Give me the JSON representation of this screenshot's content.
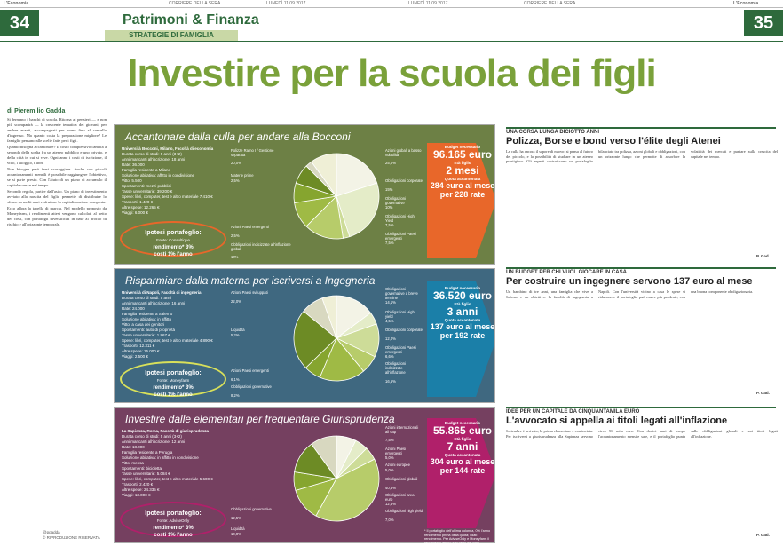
{
  "masthead": {
    "left_brand": "L'Economia",
    "left_paper": "CORRIERE DELLA SERA",
    "left_date": "LUNEDÌ 11.09.2017",
    "right_date": "LUNEDÌ 11.09.2017",
    "right_paper": "CORRIERE DELLA SERA",
    "right_brand": "L'Economia"
  },
  "pages": {
    "left": "34",
    "right": "35"
  },
  "section": {
    "title": "Patrimoni & Finanza",
    "subtitle": "STRATEGIE DI FAMIGLIA"
  },
  "headline": "Investire per la scuola dei figli",
  "byline": "di Pieremilio Gadda",
  "article_left": [
    "Si fermano i banchi di scuola. Ritorna ai pensieri — e non più scomparirà — la crescente tematica dei giovani, per andare avanti, accompagnati per mano fino al cancello d'ingresso. Ma quanto costa la preparazione migliore? Le famiglie pensano alle scelte fatte per i figli.",
    "Quanto bisogna accantonare? Il costo complessivo cambia a seconda della scelta fra un ateneo pubblico e uno privato, e della città in cui si vive. Ogni anno i costi di iscrizione, il vitto, l'alloggio, i libri.",
    "Non bisogna però farsi scoraggiare. Anche con piccoli accantonamenti mensili è possibile raggiungere l'obiettivo, se si parte presto. Con l'aiuto di un piano di accumulo il capitale cresce nel tempo.",
    "Secondo regola, partire dall'asilo. Un piano di investimento avviato alla nascita del figlio permette di distribuire lo sforzo su molti anni e sfruttare la capitalizzazione composta.",
    "Ecco allora la tabella di marcia. Nel modello proposto da Moneyfarm, i rendimenti attesi vengono calcolati al netto dei costi, con portafogli diversificati in base al profilo di rischio e all'orizzonte temporale."
  ],
  "social": {
    "handle": "@pgadda",
    "credit": "© RIPRODUZIONE RISERVATA"
  },
  "panels": [
    {
      "title": "Accantonare dalla culla per andare alla Bocconi",
      "info": [
        "Università Bocconi, Milano, Facoltà di economia",
        "Durata corso di studi: 5 anni (3+2)",
        "Anni mancanti all'iscrizione: 18 anni",
        "Rate: 36.000",
        "Famiglia residente a Milano",
        "Soluzione abitativa: affitto in condivisione",
        "Vitto: 5.500",
        "Spostamenti: mezzi pubblici",
        "Tasse universitarie: 39.200 €",
        "Spese: libri, computer, test e altro materiale 7.410 €",
        "Trasporti: 1.420 €",
        "Altre spese: 12.265 €",
        "Viaggi: 6.000 €"
      ],
      "portfolio": {
        "title": "Ipotesi portafoglio:",
        "source": "Fonte: Consultique",
        "yield": "rendimento* 3%",
        "cost": "costi 1% l'anno"
      },
      "slices": [
        {
          "label": "Polizze Ramo I / Gestione separata",
          "value": 20.0
        },
        {
          "label": "Azioni globali a basso volatilità",
          "value": 25.0
        },
        {
          "label": "Materie prime",
          "value": 2.5
        },
        {
          "label": "Obbligazioni corporate",
          "value": 15.0
        },
        {
          "label": "Obbligazioni governative",
          "value": 10.0
        },
        {
          "label": "Obbligazioni High Yield",
          "value": 7.5
        },
        {
          "label": "Obbligazioni Paesi emergenti",
          "value": 7.5
        },
        {
          "label": "Azioni Paesi emergenti",
          "value": 2.5
        },
        {
          "label": "Obbligazioni indicizzate all'inflazione globali",
          "value": 10.0
        }
      ],
      "slice_text": [
        "20,0%",
        "25,0%",
        "2,5%",
        "15%",
        "10%",
        "7,5%",
        "7,5%",
        "2,5%",
        "10%"
      ],
      "budget_label": "Budget necessario",
      "budget": "96.165 euro",
      "age_label": "Età figlio",
      "age": "2 mesi",
      "quota_label": "Quota accantonata",
      "quota": "284 euro al mese per 228 rate"
    },
    {
      "title": "Risparmiare dalla materna per iscriversi a Ingegneria",
      "info": [
        "Università di Napoli, Facoltà di ingegneria",
        "Durata corso di studi: 5 anni",
        "Anni mancanti all'iscrizione: 16 anni",
        "Rate: 24.000",
        "Famiglia residente a Salerno",
        "Soluzione abitativa: in affitto",
        "Vitto: a casa dei genitori",
        "Spostamenti: auto di proprietà",
        "Tasse universitarie: 1.867 €",
        "Spese: libri, computer, test e altro materiale 4.890 €",
        "Trasporti: 12.311 €",
        "Altre spese: 15.000 €",
        "Viaggi: 2.500 €"
      ],
      "portfolio": {
        "title": "Ipotesi portafoglio:",
        "source": "Fonte: Moneyfarm",
        "yield": "rendimento* 3%",
        "cost": "costi 1% l'anno"
      },
      "slices": [
        {
          "label": "Obbligazioni governative a breve termine",
          "value": 14.1
        },
        {
          "label": "Obbligazioni High yield",
          "value": 4.5
        },
        {
          "label": "Obbligazioni corporate",
          "value": 12.0
        },
        {
          "label": "Obbligazioni Paesi emergenti",
          "value": 6.6
        },
        {
          "label": "Obbligazioni indicizzate all'inflazione",
          "value": 16.5
        },
        {
          "label": "Azioni Paesi emergenti",
          "value": 6.1
        },
        {
          "label": "Azioni Paesi sviluppati",
          "value": 22.0
        },
        {
          "label": "Obbligazioni governative",
          "value": 8.2
        },
        {
          "label": "Liquidità",
          "value": 5.2
        }
      ],
      "slice_text": [
        "14,1%",
        "4,5%",
        "12,0%",
        "6,6%",
        "16,5%",
        "6,1%",
        "22,0%",
        "8,2%",
        "5,2%"
      ],
      "budget_label": "Budget necessario",
      "budget": "36.520 euro",
      "age_label": "Età figlio",
      "age": "3 anni",
      "quota_label": "Quota accantonata",
      "quota": "137 euro al mese per 192 rate"
    },
    {
      "title": "Investire dalle elementari per frequentare Giurisprudenza",
      "info": [
        "La Sapienza, Roma, Facoltà di giurisprudenza",
        "Durata corso di studi: 5 anni (3+2)",
        "Anni mancanti all'iscrizione: 12 anni",
        "Rate: 18.000",
        "Famiglia residente a Perugia",
        "Soluzione abitativa: in affitto in condivisione",
        "Vitto: mensa",
        "Spostamenti: bicicletta",
        "Tasse universitarie: 5.084 €",
        "Spese: libri, computer, test e altro materiale 5.600 €",
        "Trasporti: 2.420 €",
        "Altre spese: 24.335 €",
        "Viaggi: 13.000 €"
      ],
      "portfolio": {
        "title": "Ipotesi portafoglio:",
        "source": "Fonte: AdviseOnly",
        "yield": "rendimento* 3%",
        "cost": "costi 1% l'anno"
      },
      "slices": [
        {
          "label": "Azioni internazionali all cap",
          "value": 7.5
        },
        {
          "label": "Azioni Paesi emergenti",
          "value": 5.0
        },
        {
          "label": "Azioni europee",
          "value": 5.0
        },
        {
          "label": "Obbligazioni globali",
          "value": 40.5
        },
        {
          "label": "Obbligazioni area euro",
          "value": 12.5
        },
        {
          "label": "Obbligazioni high yield",
          "value": 7.0
        },
        {
          "label": "Obbligazioni governative",
          "value": 12.5
        },
        {
          "label": "Liquidità",
          "value": 10.0
        }
      ],
      "slice_text": [
        "7,5%",
        "5,0%",
        "5,0%",
        "40,5%",
        "12,5%",
        "7,0%",
        "12,5%",
        "10,0%"
      ],
      "budget_label": "Budget necessario",
      "budget": "55.865 euro",
      "age_label": "Età figlio",
      "age": "7 anni",
      "quota_label": "Quota accantonata",
      "quota": "304 euro al mese per 144 rate"
    }
  ],
  "footnote": "* Il portafoglio dell'ultima colonna, 0% l'anno rendimento prima della quota; i dati rendimento. Per AdviseOnly e Moneyfarm il rendimento atteso è al netto dei costi.",
  "right_articles": [
    {
      "kicker": "UNA CORSA LUNGA DICIOTTO ANNI",
      "title": "Polizza, Borse e bond verso l'élite degli Atenei",
      "text": "La culla ha ancora il sapore di nuovo: si pensa al futuro del piccolo, e la possibilità di studiare in un ateneo prestigioso. Gli esperti costruiscono un portafoglio bilanciato tra polizza, azioni globali e obbligazioni, con un orizzonte lungo che permette di assorbire la volatilità dei mercati e puntare sulla crescita del capitale nel tempo.",
      "signature": "P. Gad."
    },
    {
      "kicker": "UN BUDGET PER CHI VUOL GIOCARE IN CASA",
      "title": "Per costruire un ingegnere servono 137 euro al mese",
      "text": "Un bambino di tre anni, una famiglia che vive a Salerno e un obiettivo: la facoltà di ingegneria a Napoli. Con l'università vicino a casa le spese si riducono e il portafoglio può essere più prudente, con una buona componente obbligazionaria.",
      "signature": "P. Gad."
    },
    {
      "kicker": "IDEE PER UN CAPITALE DA CINQUANTAMILA EURO",
      "title": "L'avvocato si appella ai titoli legati all'inflazione",
      "text": "Settembre è arrivato, la prima elementare è cominciata. Per iscriversi a giurisprudenza alla Sapienza servono circa 56 mila euro. Con dodici anni di tempo l'accantonamento mensile sale, e il portafoglio punta sulle obbligazioni globali e sui titoli legati all'inflazione.",
      "signature": "P. Gad."
    }
  ],
  "colors": {
    "brand_green": "#2e6a3c",
    "headline_green": "#7aa13a",
    "panel1": "#6d8045",
    "panel2": "#3f6880",
    "panel3": "#754060"
  }
}
